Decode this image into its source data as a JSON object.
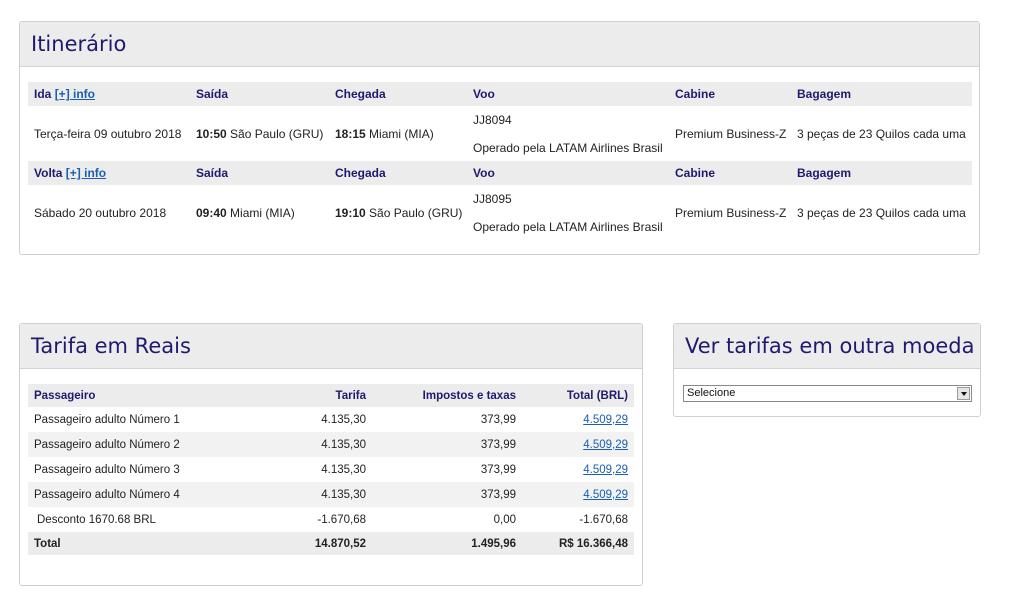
{
  "itinerary": {
    "title": "Itinerário",
    "info_link": "[+] info",
    "headers": {
      "saida": "Saída",
      "chegada": "Chegada",
      "voo": "Voo",
      "cabine": "Cabine",
      "bagagem": "Bagagem"
    },
    "legs": [
      {
        "label": "Ida",
        "date": "Terça-feira 09 outubro 2018",
        "dep_time": "10:50",
        "dep_place": "São Paulo (GRU)",
        "arr_time": "18:15",
        "arr_place": "Miami (MIA)",
        "flight": "JJ8094",
        "operator": "Operado pela LATAM Airlines Brasil",
        "cabin": "Premium Business-Z",
        "baggage": "3 peças de 23 Quilos cada uma"
      },
      {
        "label": "Volta",
        "date": "Sábado 20 outubro 2018",
        "dep_time": "09:40",
        "dep_place": "Miami (MIA)",
        "arr_time": "19:10",
        "arr_place": "São Paulo (GRU)",
        "flight": "JJ8095",
        "operator": "Operado pela LATAM Airlines Brasil",
        "cabin": "Premium Business-Z",
        "baggage": "3 peças de 23 Quilos cada uma"
      }
    ]
  },
  "fare": {
    "title": "Tarifa em Reais",
    "headers": {
      "passenger": "Passageiro",
      "fare": "Tarifa",
      "taxes": "Impostos e taxas",
      "total": "Total (BRL)"
    },
    "rows": [
      {
        "passenger": "Passageiro adulto Número 1",
        "fare": "4.135,30",
        "taxes": "373,99",
        "total": "4.509,29"
      },
      {
        "passenger": "Passageiro adulto Número 2",
        "fare": "4.135,30",
        "taxes": "373,99",
        "total": "4.509,29"
      },
      {
        "passenger": "Passageiro adulto Número 3",
        "fare": "4.135,30",
        "taxes": "373,99",
        "total": "4.509,29"
      },
      {
        "passenger": "Passageiro adulto Número 4",
        "fare": "4.135,30",
        "taxes": "373,99",
        "total": "4.509,29"
      }
    ],
    "discount": {
      "label": "Desconto 1670.68 BRL",
      "fare": "-1.670,68",
      "taxes": "0,00",
      "total": "-1.670,68"
    },
    "total": {
      "label": "Total",
      "fare": "14.870,52",
      "taxes": "1.495,96",
      "total": "R$ 16.366,48"
    }
  },
  "currency": {
    "title": "Ver tarifas em outra moeda",
    "select_value": "Selecione"
  }
}
